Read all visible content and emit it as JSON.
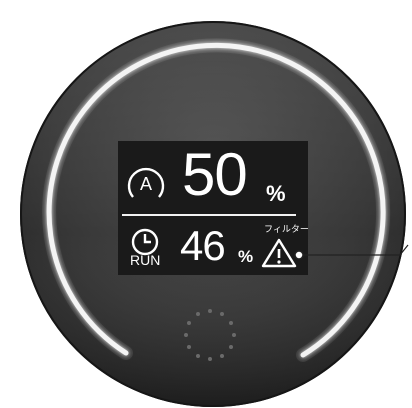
{
  "display": {
    "humidity_value": "50",
    "humidity_unit": "%",
    "mode_icon": "auto-mode-icon",
    "current_value": "46",
    "current_unit": "%",
    "run_label": "RUN",
    "timer_icon": "timer-clock-icon",
    "filter_label": "フィルター",
    "filter_warning_icon": "warning-triangle-icon"
  },
  "colors": {
    "body_dark": "#2e2e2e",
    "screen_bg": "#1a1a1a",
    "ring_light": "#ffffff",
    "text": "#ffffff"
  },
  "indicator": {
    "ring_level": 0.5
  }
}
